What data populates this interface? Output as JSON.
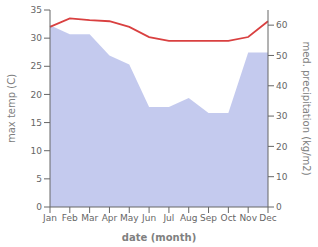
{
  "chart_data": {
    "type": "line",
    "categories": [
      "Jan",
      "Feb",
      "Mar",
      "Apr",
      "May",
      "Jun",
      "Jul",
      "Aug",
      "Sep",
      "Oct",
      "Nov",
      "Dec"
    ],
    "series": [
      {
        "type": "area",
        "axis": "y2",
        "color": "#b0b8e8",
        "values": [
          60,
          57,
          57,
          50,
          47,
          33,
          33,
          36,
          31,
          31,
          51,
          51
        ]
      },
      {
        "type": "line",
        "axis": "y",
        "color": "#d94040",
        "values": [
          32.0,
          33.5,
          33.2,
          33.0,
          32.0,
          30.2,
          29.5,
          29.5,
          29.5,
          29.5,
          30.2,
          33.0
        ]
      }
    ],
    "xlabel": "date (month)",
    "ylabel": "max temp (C)",
    "y2label": "med. precipitation (kg/m2)",
    "ylim": [
      0,
      35
    ],
    "yticks": [
      0,
      5,
      10,
      15,
      20,
      25,
      30,
      35
    ],
    "y2lim": [
      0,
      65
    ],
    "y2ticks": [
      0,
      10,
      20,
      30,
      40,
      50,
      60
    ],
    "grid": false
  }
}
